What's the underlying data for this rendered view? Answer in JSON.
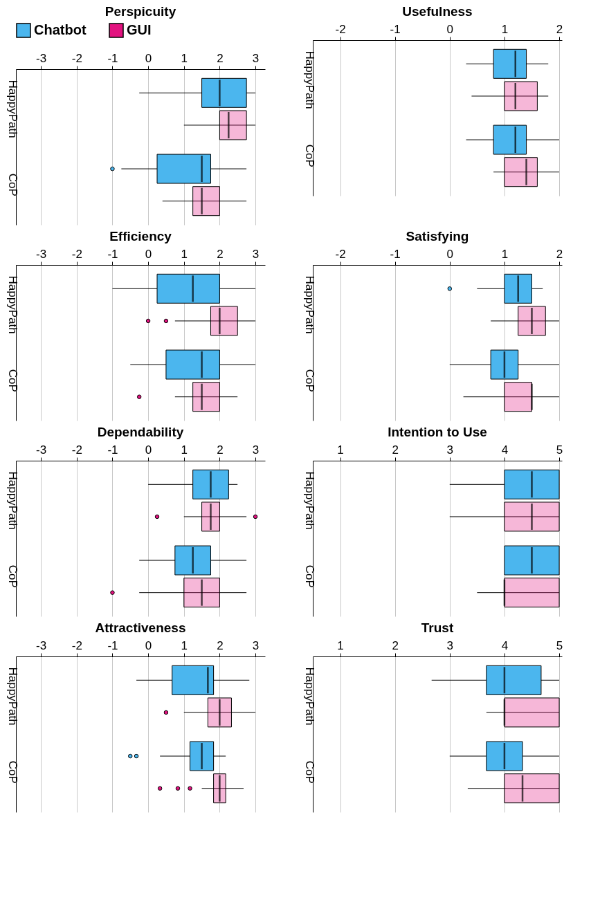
{
  "chart_data": [
    {
      "type": "box",
      "title": "Perspicuity",
      "orientation": "horizontal",
      "categories": [
        "HappyPath",
        "CoP"
      ],
      "xlim": [
        -3.7,
        3.27
      ],
      "xticks": [
        -3,
        -2,
        -1,
        0,
        1,
        2,
        3
      ],
      "grid": "x",
      "legend": "top",
      "series": [
        {
          "name": "Chatbot",
          "color": "#4bb6ee",
          "boxes": [
            {
              "low": -0.25,
              "q1": 1.5,
              "median": 2,
              "q3": 2.75,
              "high": 3
            },
            {
              "low": -0.75,
              "q1": 0.25,
              "median": 1.5,
              "q3": 1.75,
              "high": 2.75,
              "outliers": [
                -1
              ]
            }
          ]
        },
        {
          "name": "GUI",
          "color": "#e2127f",
          "boxes": [
            {
              "low": 1,
              "q1": 2,
              "median": 2.25,
              "q3": 2.75,
              "high": 3
            },
            {
              "low": 0.4,
              "q1": 1.25,
              "median": 1.5,
              "q3": 2,
              "high": 2.75
            }
          ]
        }
      ]
    },
    {
      "type": "box",
      "title": "Usefulness",
      "orientation": "horizontal",
      "categories": [
        "HappyPath",
        "CoP"
      ],
      "xlim": [
        -2.5,
        2.05
      ],
      "xticks": [
        -2,
        -1,
        0,
        1,
        2
      ],
      "grid": "x",
      "series": [
        {
          "color": "#4bb6ee",
          "boxes": [
            {
              "low": 0.3,
              "q1": 0.8,
              "median": 1.2,
              "q3": 1.4,
              "high": 1.8
            },
            {
              "low": 0.3,
              "q1": 0.8,
              "median": 1.2,
              "q3": 1.4,
              "high": 2
            }
          ]
        },
        {
          "color": "#e2127f",
          "boxes": [
            {
              "low": 0.4,
              "q1": 1,
              "median": 1.2,
              "q3": 1.6,
              "high": 1.8
            },
            {
              "low": 0.8,
              "q1": 1,
              "median": 1.4,
              "q3": 1.6,
              "high": 2
            }
          ]
        }
      ]
    },
    {
      "type": "box",
      "title": "Efficiency",
      "orientation": "horizontal",
      "categories": [
        "HappyPath",
        "CoP"
      ],
      "xlim": [
        -3.7,
        3.27
      ],
      "xticks": [
        -3,
        -2,
        -1,
        0,
        1,
        2,
        3
      ],
      "grid": "x",
      "series": [
        {
          "color": "#4bb6ee",
          "boxes": [
            {
              "low": -1,
              "q1": 0.25,
              "median": 1.25,
              "q3": 2,
              "high": 3
            },
            {
              "low": -0.5,
              "q1": 0.5,
              "median": 1.5,
              "q3": 2,
              "high": 3
            }
          ]
        },
        {
          "color": "#e2127f",
          "boxes": [
            {
              "low": 0.75,
              "q1": 1.75,
              "median": 2,
              "q3": 2.5,
              "high": 3,
              "outliers": [
                0,
                0.5
              ]
            },
            {
              "low": 0.75,
              "q1": 1.25,
              "median": 1.5,
              "q3": 2,
              "high": 2.5,
              "outliers": [
                -0.25
              ]
            }
          ]
        }
      ]
    },
    {
      "type": "box",
      "title": "Satisfying",
      "orientation": "horizontal",
      "categories": [
        "HappyPath",
        "CoP"
      ],
      "xlim": [
        -2.5,
        2.05
      ],
      "xticks": [
        -2,
        -1,
        0,
        1,
        2
      ],
      "grid": "x",
      "series": [
        {
          "color": "#4bb6ee",
          "boxes": [
            {
              "low": 0.5,
              "q1": 1,
              "median": 1.25,
              "q3": 1.5,
              "high": 1.7,
              "outliers": [
                0
              ]
            },
            {
              "low": 0,
              "q1": 0.75,
              "median": 1,
              "q3": 1.25,
              "high": 2
            }
          ]
        },
        {
          "color": "#e2127f",
          "boxes": [
            {
              "low": 0.75,
              "q1": 1.25,
              "median": 1.5,
              "q3": 1.75,
              "high": 2
            },
            {
              "low": 0.25,
              "q1": 1,
              "median": 1.5,
              "q3": 1.5,
              "high": 2
            }
          ]
        }
      ]
    },
    {
      "type": "box",
      "title": "Dependability",
      "orientation": "horizontal",
      "categories": [
        "HappyPath",
        "CoP"
      ],
      "xlim": [
        -3.7,
        3.27
      ],
      "xticks": [
        -3,
        -2,
        -1,
        0,
        1,
        2,
        3
      ],
      "grid": "x",
      "series": [
        {
          "color": "#4bb6ee",
          "boxes": [
            {
              "low": 0,
              "q1": 1.25,
              "median": 1.75,
              "q3": 2.25,
              "high": 2.5
            },
            {
              "low": -0.25,
              "q1": 0.75,
              "median": 1.25,
              "q3": 1.75,
              "high": 2.75
            }
          ]
        },
        {
          "color": "#e2127f",
          "boxes": [
            {
              "low": 1,
              "q1": 1.5,
              "median": 1.75,
              "q3": 2,
              "high": 2.75,
              "outliers": [
                0.25,
                3
              ]
            },
            {
              "low": -0.25,
              "q1": 1,
              "median": 1.5,
              "q3": 2,
              "high": 2.75,
              "outliers": [
                -1
              ]
            }
          ]
        }
      ]
    },
    {
      "type": "box",
      "title": "Intention to Use",
      "orientation": "horizontal",
      "categories": [
        "HappyPath",
        "CoP"
      ],
      "xlim": [
        0.5,
        5.05
      ],
      "xticks": [
        1,
        2,
        3,
        4,
        5
      ],
      "grid": "x",
      "series": [
        {
          "color": "#4bb6ee",
          "boxes": [
            {
              "low": 3,
              "q1": 4,
              "median": 4.5,
              "q3": 5,
              "high": 5
            },
            {
              "low": 4,
              "q1": 4,
              "median": 4.5,
              "q3": 5,
              "high": 5
            }
          ]
        },
        {
          "color": "#e2127f",
          "boxes": [
            {
              "low": 3,
              "q1": 4,
              "median": 4.5,
              "q3": 5,
              "high": 5
            },
            {
              "low": 3.5,
              "q1": 4,
              "median": 4,
              "q3": 5,
              "high": 5
            }
          ]
        }
      ]
    },
    {
      "type": "box",
      "title": "Attractiveness",
      "orientation": "horizontal",
      "categories": [
        "HappyPath",
        "CoP"
      ],
      "xlim": [
        -3.7,
        3.27
      ],
      "xticks": [
        -3,
        -2,
        -1,
        0,
        1,
        2,
        3
      ],
      "grid": "x",
      "series": [
        {
          "color": "#4bb6ee",
          "boxes": [
            {
              "low": -0.33,
              "q1": 0.67,
              "median": 1.67,
              "q3": 1.83,
              "high": 2.83
            },
            {
              "low": 0.33,
              "q1": 1.17,
              "median": 1.5,
              "q3": 1.83,
              "high": 2.17,
              "outliers": [
                -0.5,
                -0.33
              ]
            }
          ]
        },
        {
          "color": "#e2127f",
          "boxes": [
            {
              "low": 1,
              "q1": 1.67,
              "median": 2,
              "q3": 2.33,
              "high": 3,
              "outliers": [
                0.5
              ]
            },
            {
              "low": 1.5,
              "q1": 1.83,
              "median": 2,
              "q3": 2.17,
              "high": 2.67,
              "outliers": [
                0.33,
                0.83,
                1.17
              ]
            }
          ]
        }
      ]
    },
    {
      "type": "box",
      "title": "Trust",
      "orientation": "horizontal",
      "categories": [
        "HappyPath",
        "CoP"
      ],
      "xlim": [
        0.5,
        5.05
      ],
      "xticks": [
        1,
        2,
        3,
        4,
        5
      ],
      "grid": "x",
      "series": [
        {
          "color": "#4bb6ee",
          "boxes": [
            {
              "low": 2.67,
              "q1": 3.67,
              "median": 4,
              "q3": 4.67,
              "high": 5
            },
            {
              "low": 3,
              "q1": 3.67,
              "median": 4,
              "q3": 4.33,
              "high": 5
            }
          ]
        },
        {
          "color": "#e2127f",
          "boxes": [
            {
              "low": 3.67,
              "q1": 4,
              "median": 4,
              "q3": 5,
              "high": 5
            },
            {
              "low": 3.33,
              "q1": 4,
              "median": 4.33,
              "q3": 5,
              "high": 5
            }
          ]
        }
      ]
    }
  ]
}
